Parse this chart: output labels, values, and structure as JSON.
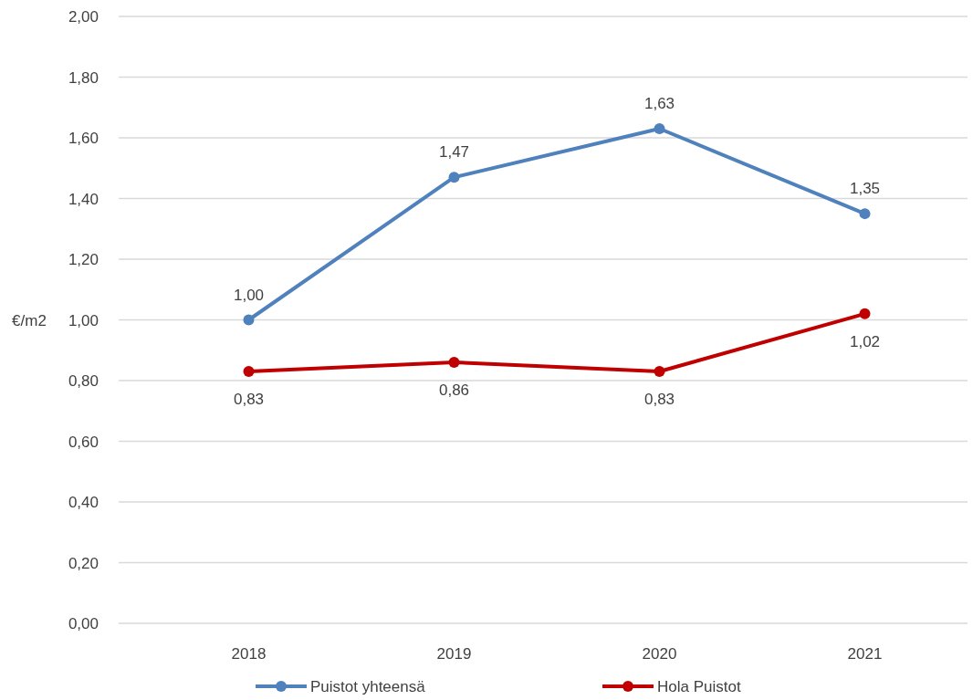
{
  "chart_data": {
    "type": "line",
    "ylabel": "€/m2",
    "categories": [
      "2018",
      "2019",
      "2020",
      "2021"
    ],
    "series": [
      {
        "name": "Puistot yhteensä",
        "color": "#4f81bd",
        "values": [
          1.0,
          1.47,
          1.63,
          1.35
        ],
        "value_labels": [
          "1,00",
          "1,47",
          "1,63",
          "1,35"
        ]
      },
      {
        "name": "Hola Puistot",
        "color": "#c00000",
        "values": [
          0.83,
          0.86,
          0.83,
          1.02
        ],
        "value_labels": [
          "0,83",
          "0,86",
          "0,83",
          "1,02"
        ]
      }
    ],
    "ylim": [
      0,
      2
    ],
    "yticks": [
      {
        "value": 0,
        "label": "0,00"
      },
      {
        "value": 0.2,
        "label": "0,20"
      },
      {
        "value": 0.4,
        "label": "0,40"
      },
      {
        "value": 0.6,
        "label": "0,60"
      },
      {
        "value": 0.8,
        "label": "0,80"
      },
      {
        "value": 1,
        "label": "1,00"
      },
      {
        "value": 1.2,
        "label": "1,20"
      },
      {
        "value": 1.4,
        "label": "1,40"
      },
      {
        "value": 1.6,
        "label": "1,60"
      },
      {
        "value": 1.8,
        "label": "1,80"
      },
      {
        "value": 2,
        "label": "2,00"
      }
    ],
    "grid": "y",
    "legend": "bottom",
    "marker": "circle",
    "line_style": "solid"
  }
}
